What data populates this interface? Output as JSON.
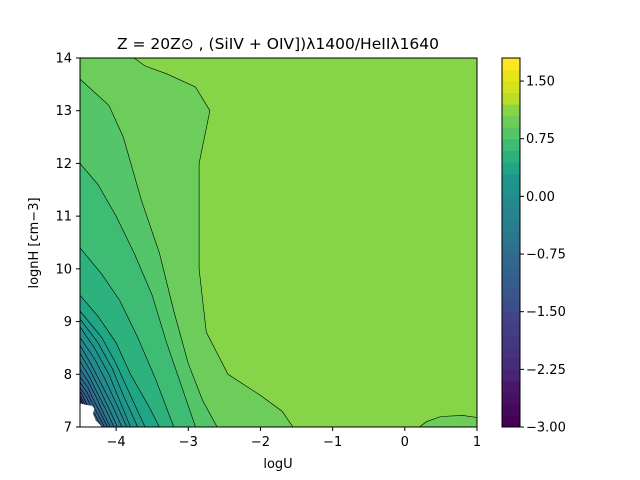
{
  "chart_data": {
    "type": "contour",
    "title": "Z = 20Z⊙ , (SiIV + OIV])λ1400/HeIIλ1640",
    "xlabel": "logU",
    "ylabel": "lognH [cm−3]",
    "xlim": [
      -4.5,
      1
    ],
    "ylim": [
      7,
      14
    ],
    "xticks": [
      -4,
      -3,
      -2,
      -1,
      0,
      1
    ],
    "yticks": [
      7,
      8,
      9,
      10,
      11,
      12,
      13,
      14
    ],
    "colorbar": {
      "range": [
        -3.0,
        1.8
      ],
      "ticks": [
        -3.0,
        -2.25,
        -1.5,
        -0.75,
        0.0,
        0.75,
        1.5
      ],
      "tick_labels": [
        "−3.00",
        "−2.25",
        "−1.50",
        "−0.75",
        "0.00",
        "0.75",
        "1.50"
      ],
      "levels": [
        -3.0,
        -2.85,
        -2.7,
        -2.55,
        -2.4,
        -2.25,
        -2.1,
        -1.95,
        -1.8,
        -1.65,
        -1.5,
        -1.35,
        -1.2,
        -1.05,
        -0.9,
        -0.75,
        -0.6,
        -0.45,
        -0.3,
        -0.15,
        0.0,
        0.15,
        0.3,
        0.45,
        0.6,
        0.75,
        0.9,
        1.05,
        1.2,
        1.35,
        1.5,
        1.65,
        1.8
      ],
      "colors": [
        "#440154",
        "#46085c",
        "#471063",
        "#481769",
        "#481d6f",
        "#482475",
        "#472c7a",
        "#46327e",
        "#453882",
        "#433e85",
        "#414487",
        "#3e4989",
        "#3c4f8a",
        "#39558c",
        "#365c8d",
        "#33638d",
        "#30688e",
        "#2e6e8e",
        "#2c738e",
        "#2a788e",
        "#277f8e",
        "#25848e",
        "#23898e",
        "#21918c",
        "#1f968b",
        "#1f9e89",
        "#21a685",
        "#2db27d",
        "#3fbc73",
        "#54c568",
        "#6ccd5a",
        "#86d549",
        "#a0da39",
        "#bade28",
        "#d2e21b",
        "#e8e419",
        "#fde725"
      ]
    },
    "contour_bands": [
      {
        "value": 1.05,
        "color": "#86d549",
        "points": [
          [
            -4.5,
            14
          ],
          [
            1,
            14
          ],
          [
            1,
            7
          ],
          [
            -4.5,
            7
          ]
        ]
      },
      {
        "value": 0.9,
        "color": "#6ccd5a",
        "points": [
          [
            -4.5,
            14
          ],
          [
            -3.75,
            14
          ],
          [
            -3.6,
            13.85
          ],
          [
            -3.3,
            13.7
          ],
          [
            -2.9,
            13.45
          ],
          [
            -2.7,
            13.0
          ],
          [
            -2.85,
            12.0
          ],
          [
            -2.85,
            10.0
          ],
          [
            -2.75,
            8.8
          ],
          [
            -2.45,
            8.0
          ],
          [
            -2.0,
            7.6
          ],
          [
            -1.7,
            7.3
          ],
          [
            -1.55,
            7.0
          ],
          [
            -4.5,
            7
          ]
        ]
      },
      {
        "value": 0.9,
        "color": "#6ccd5a",
        "points": [
          [
            0.2,
            7.0
          ],
          [
            0.3,
            7.1
          ],
          [
            0.5,
            7.2
          ],
          [
            0.8,
            7.22
          ],
          [
            1.0,
            7.18
          ],
          [
            1.0,
            7.0
          ]
        ]
      },
      {
        "value": 0.75,
        "color": "#54c568",
        "points": [
          [
            -4.5,
            13.6
          ],
          [
            -4.1,
            13.1
          ],
          [
            -3.9,
            12.5
          ],
          [
            -3.65,
            11.3
          ],
          [
            -3.4,
            10.3
          ],
          [
            -3.2,
            9.2
          ],
          [
            -3.0,
            8.2
          ],
          [
            -2.8,
            7.5
          ],
          [
            -2.6,
            7.0
          ],
          [
            -4.5,
            7
          ]
        ]
      },
      {
        "value": 0.6,
        "color": "#3fbc73",
        "points": [
          [
            -4.5,
            12.0
          ],
          [
            -4.25,
            11.6
          ],
          [
            -4.0,
            11.0
          ],
          [
            -3.75,
            10.3
          ],
          [
            -3.5,
            9.5
          ],
          [
            -3.3,
            8.6
          ],
          [
            -3.1,
            7.8
          ],
          [
            -2.9,
            7.0
          ],
          [
            -4.5,
            7
          ]
        ]
      },
      {
        "value": 0.45,
        "color": "#2db27d",
        "points": [
          [
            -4.5,
            10.4
          ],
          [
            -4.2,
            9.9
          ],
          [
            -3.95,
            9.4
          ],
          [
            -3.7,
            8.7
          ],
          [
            -3.45,
            7.9
          ],
          [
            -3.2,
            7.0
          ],
          [
            -4.5,
            7
          ]
        ]
      },
      {
        "value": 0.3,
        "color": "#21a685",
        "points": [
          [
            -4.5,
            9.5
          ],
          [
            -4.25,
            9.1
          ],
          [
            -4.0,
            8.6
          ],
          [
            -3.8,
            8.0
          ],
          [
            -3.55,
            7.4
          ],
          [
            -3.4,
            7.0
          ],
          [
            -4.5,
            7
          ]
        ]
      },
      {
        "value": 0.15,
        "color": "#1f9e89",
        "points": [
          [
            -4.5,
            9.2
          ],
          [
            -4.2,
            8.7
          ],
          [
            -4.0,
            8.2
          ],
          [
            -3.8,
            7.6
          ],
          [
            -3.6,
            7.0
          ],
          [
            -4.5,
            7
          ]
        ]
      },
      {
        "value": 0.0,
        "color": "#1f968b",
        "points": [
          [
            -4.5,
            9.05
          ],
          [
            -4.25,
            8.6
          ],
          [
            -4.05,
            8.1
          ],
          [
            -3.9,
            7.6
          ],
          [
            -3.7,
            7.0
          ],
          [
            -4.5,
            7
          ]
        ]
      },
      {
        "value": -0.15,
        "color": "#21918c",
        "points": [
          [
            -4.5,
            8.9
          ],
          [
            -4.3,
            8.5
          ],
          [
            -4.1,
            8.0
          ],
          [
            -3.95,
            7.5
          ],
          [
            -3.8,
            7.0
          ],
          [
            -4.5,
            7
          ]
        ]
      },
      {
        "value": -0.3,
        "color": "#23898e",
        "points": [
          [
            -4.5,
            8.7
          ],
          [
            -4.3,
            8.3
          ],
          [
            -4.15,
            7.9
          ],
          [
            -4.0,
            7.45
          ],
          [
            -3.85,
            7.0
          ],
          [
            -4.5,
            7
          ]
        ]
      },
      {
        "value": -0.45,
        "color": "#25848e",
        "points": [
          [
            -4.5,
            8.55
          ],
          [
            -4.35,
            8.2
          ],
          [
            -4.2,
            7.8
          ],
          [
            -4.05,
            7.4
          ],
          [
            -3.92,
            7.0
          ],
          [
            -4.5,
            7
          ]
        ]
      },
      {
        "value": -0.6,
        "color": "#277f8e",
        "points": [
          [
            -4.5,
            8.4
          ],
          [
            -4.35,
            8.05
          ],
          [
            -4.22,
            7.7
          ],
          [
            -4.1,
            7.35
          ],
          [
            -3.98,
            7.0
          ],
          [
            -4.5,
            7
          ]
        ]
      },
      {
        "value": -0.75,
        "color": "#2a788e",
        "points": [
          [
            -4.5,
            8.25
          ],
          [
            -4.37,
            7.95
          ],
          [
            -4.25,
            7.62
          ],
          [
            -4.13,
            7.3
          ],
          [
            -4.03,
            7.0
          ],
          [
            -4.5,
            7
          ]
        ]
      },
      {
        "value": -0.9,
        "color": "#2e6e8e",
        "points": [
          [
            -4.5,
            8.1
          ],
          [
            -4.38,
            7.85
          ],
          [
            -4.27,
            7.55
          ],
          [
            -4.17,
            7.25
          ],
          [
            -4.08,
            7.0
          ],
          [
            -4.5,
            7
          ]
        ]
      },
      {
        "value": -1.05,
        "color": "#30688e",
        "points": [
          [
            -4.5,
            7.95
          ],
          [
            -4.39,
            7.75
          ],
          [
            -4.3,
            7.48
          ],
          [
            -4.2,
            7.22
          ],
          [
            -4.12,
            7.0
          ],
          [
            -4.5,
            7
          ]
        ]
      },
      {
        "value": -1.2,
        "color": "#33638d",
        "points": [
          [
            -4.5,
            7.85
          ],
          [
            -4.4,
            7.65
          ],
          [
            -4.32,
            7.42
          ],
          [
            -4.23,
            7.18
          ],
          [
            -4.16,
            7.0
          ],
          [
            -4.5,
            7
          ]
        ]
      },
      {
        "value": -1.35,
        "color": "#365c8d",
        "points": [
          [
            -4.5,
            7.75
          ],
          [
            -4.41,
            7.57
          ],
          [
            -4.34,
            7.36
          ],
          [
            -4.26,
            7.15
          ],
          [
            -4.2,
            7.0
          ],
          [
            -4.5,
            7
          ]
        ]
      },
      {
        "value": -1.5,
        "color": "#39558c",
        "points": [
          [
            -4.5,
            7.68
          ],
          [
            -4.43,
            7.5
          ],
          [
            -4.36,
            7.3
          ],
          [
            -4.29,
            7.12
          ],
          [
            -4.23,
            7.0
          ],
          [
            -4.5,
            7
          ]
        ]
      },
      {
        "value": -1.8,
        "color": "#3e4989",
        "points": [
          [
            -4.5,
            7.6
          ],
          [
            -4.44,
            7.45
          ],
          [
            -4.38,
            7.27
          ],
          [
            -4.32,
            7.1
          ],
          [
            -4.27,
            7.0
          ],
          [
            -4.5,
            7
          ]
        ]
      },
      {
        "value": -2.1,
        "color": "#453882",
        "points": [
          [
            -4.5,
            7.55
          ],
          [
            -4.45,
            7.4
          ],
          [
            -4.4,
            7.23
          ],
          [
            -4.35,
            7.08
          ],
          [
            -4.3,
            7.0
          ],
          [
            -4.5,
            7
          ]
        ]
      },
      {
        "value": -2.4,
        "color": "#482475",
        "points": [
          [
            -4.5,
            7.5
          ],
          [
            -4.46,
            7.35
          ],
          [
            -4.42,
            7.2
          ],
          [
            -4.38,
            7.06
          ],
          [
            -4.34,
            7.0
          ],
          [
            -4.5,
            7
          ]
        ]
      },
      {
        "value": -2.7,
        "color": "#471063",
        "points": [
          [
            -4.5,
            7.45
          ],
          [
            -4.47,
            7.3
          ],
          [
            -4.44,
            7.15
          ],
          [
            -4.4,
            7.0
          ],
          [
            -4.5,
            7
          ]
        ]
      }
    ],
    "blank_region": [
      [
        -4.5,
        7.0
      ],
      [
        -4.5,
        7.45
      ],
      [
        -4.42,
        7.42
      ],
      [
        -4.33,
        7.4
      ],
      [
        -4.3,
        7.35
      ],
      [
        -4.32,
        7.25
      ],
      [
        -4.28,
        7.12
      ],
      [
        -4.22,
        7.04
      ],
      [
        -4.2,
        7.0
      ]
    ]
  }
}
